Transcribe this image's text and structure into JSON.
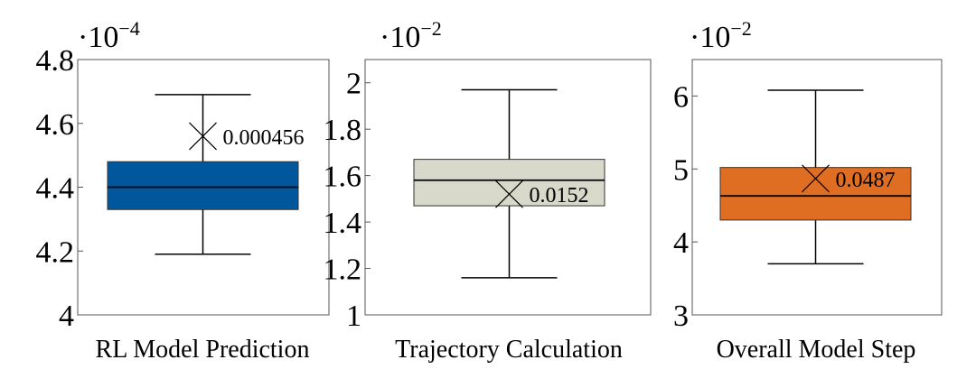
{
  "chart_data": [
    {
      "type": "box",
      "xlabel": "RL Model Prediction",
      "scale_multiplier": {
        "base": "·10",
        "exponent": "−4"
      },
      "ylim": [
        4.0,
        4.8
      ],
      "yticks": [
        {
          "value": 4.0,
          "label": "4"
        },
        {
          "value": 4.2,
          "label": "4.2"
        },
        {
          "value": 4.4,
          "label": "4.4"
        },
        {
          "value": 4.6,
          "label": "4.6"
        },
        {
          "value": 4.8,
          "label": "4.8"
        }
      ],
      "box": {
        "whisker_low": 4.19,
        "q1": 4.33,
        "median": 4.4,
        "q3": 4.48,
        "whisker_high": 4.69,
        "mean": 4.56
      },
      "mean_label": "0.000456",
      "fill_color": "#00579b"
    },
    {
      "type": "box",
      "xlabel": "Trajectory Calculation",
      "scale_multiplier": {
        "base": "·10",
        "exponent": "−2"
      },
      "ylim": [
        1.0,
        2.1
      ],
      "yticks": [
        {
          "value": 1.0,
          "label": "1"
        },
        {
          "value": 1.2,
          "label": "1.2"
        },
        {
          "value": 1.4,
          "label": "1.4"
        },
        {
          "value": 1.6,
          "label": "1.6"
        },
        {
          "value": 1.8,
          "label": "1.8"
        },
        {
          "value": 2.0,
          "label": "2"
        }
      ],
      "box": {
        "whisker_low": 1.16,
        "q1": 1.47,
        "median": 1.58,
        "q3": 1.67,
        "whisker_high": 1.97,
        "mean": 1.52
      },
      "mean_label": "0.0152",
      "fill_color": "#d8d8cb"
    },
    {
      "type": "box",
      "xlabel": "Overall Model Step",
      "scale_multiplier": {
        "base": "·10",
        "exponent": "−2"
      },
      "ylim": [
        3.0,
        6.5
      ],
      "yticks": [
        {
          "value": 3,
          "label": "3"
        },
        {
          "value": 4,
          "label": "4"
        },
        {
          "value": 5,
          "label": "5"
        },
        {
          "value": 6,
          "label": "6"
        }
      ],
      "box": {
        "whisker_low": 3.7,
        "q1": 4.3,
        "median": 4.63,
        "q3": 5.02,
        "whisker_high": 6.08,
        "mean": 4.87
      },
      "mean_label": "0.0487",
      "fill_color": "#e06e22"
    }
  ]
}
